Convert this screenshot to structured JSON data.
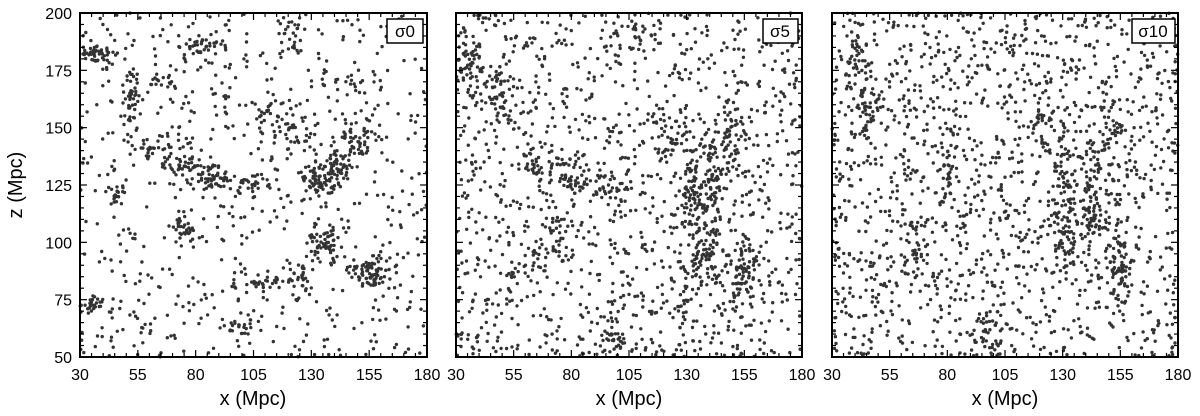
{
  "chart_data": [
    {
      "type": "scatter",
      "panel_label": "σ0",
      "xlabel": "",
      "ylabel": "z (Mpc)",
      "xlim": [
        30,
        180
      ],
      "ylim": [
        50,
        200
      ],
      "xticks": [
        30,
        55,
        80,
        105,
        130,
        155,
        180
      ],
      "yticks": [
        50,
        75,
        100,
        125,
        150,
        175,
        200
      ],
      "xtick_labels": [
        "30",
        "55",
        "80",
        "105",
        "130",
        "155",
        "180"
      ],
      "ytick_labels": [
        "50",
        "75",
        "100",
        "125",
        "150",
        "175",
        "200"
      ],
      "marker_color": "#333333",
      "clusters": [
        {
          "x": 36,
          "y": 182,
          "sx": 4,
          "sy": 2,
          "n": 45
        },
        {
          "x": 52,
          "y": 165,
          "sx": 2,
          "sy": 6,
          "n": 40
        },
        {
          "x": 83,
          "y": 186,
          "sx": 5,
          "sy": 3,
          "n": 40
        },
        {
          "x": 75,
          "y": 135,
          "sx": 6,
          "sy": 3,
          "n": 45
        },
        {
          "x": 88,
          "y": 128,
          "sx": 4,
          "sy": 4,
          "n": 45
        },
        {
          "x": 103,
          "y": 126,
          "sx": 6,
          "sy": 2,
          "n": 30
        },
        {
          "x": 132,
          "y": 128,
          "sx": 4,
          "sy": 4,
          "n": 55
        },
        {
          "x": 140,
          "y": 130,
          "sx": 3,
          "sy": 5,
          "n": 60
        },
        {
          "x": 150,
          "y": 145,
          "sx": 4,
          "sy": 5,
          "n": 55
        },
        {
          "x": 136,
          "y": 100,
          "sx": 4,
          "sy": 5,
          "n": 55
        },
        {
          "x": 155,
          "y": 87,
          "sx": 5,
          "sy": 3,
          "n": 70
        },
        {
          "x": 73,
          "y": 107,
          "sx": 3,
          "sy": 3,
          "n": 30
        },
        {
          "x": 35,
          "y": 73,
          "sx": 2,
          "sy": 1.5,
          "n": 25
        },
        {
          "x": 110,
          "y": 83,
          "sx": 6,
          "sy": 2,
          "n": 30
        },
        {
          "x": 126,
          "y": 85,
          "sx": 3,
          "sy": 5,
          "n": 30
        },
        {
          "x": 112,
          "y": 158,
          "sx": 8,
          "sy": 3,
          "n": 30
        },
        {
          "x": 120,
          "y": 150,
          "sx": 6,
          "sy": 3,
          "n": 30
        },
        {
          "x": 99,
          "y": 62,
          "sx": 4,
          "sy": 4,
          "n": 25
        },
        {
          "x": 45,
          "y": 120,
          "sx": 2,
          "sy": 3,
          "n": 20
        },
        {
          "x": 67,
          "y": 170,
          "sx": 4,
          "sy": 4,
          "n": 20
        },
        {
          "x": 61,
          "y": 140,
          "sx": 5,
          "sy": 4,
          "n": 25
        },
        {
          "x": 147,
          "y": 172,
          "sx": 8,
          "sy": 4,
          "n": 25
        },
        {
          "x": 122,
          "y": 190,
          "sx": 3,
          "sy": 5,
          "n": 25
        }
      ],
      "background_points": 650
    },
    {
      "type": "scatter",
      "panel_label": "σ5",
      "xlabel": "x (Mpc)",
      "ylabel": "",
      "xlim": [
        30,
        180
      ],
      "ylim": [
        50,
        200
      ],
      "xticks": [
        30,
        55,
        80,
        105,
        130,
        155,
        180
      ],
      "xtick_labels": [
        "30",
        "55",
        "80",
        "105",
        "130",
        "155",
        "180"
      ],
      "marker_color": "#333333",
      "clusters": [
        {
          "x": 36,
          "y": 180,
          "sx": 3,
          "sy": 6,
          "n": 40
        },
        {
          "x": 48,
          "y": 163,
          "sx": 2.5,
          "sy": 8,
          "n": 45
        },
        {
          "x": 78,
          "y": 131,
          "sx": 4,
          "sy": 7,
          "n": 45
        },
        {
          "x": 96,
          "y": 125,
          "sx": 5,
          "sy": 4,
          "n": 35
        },
        {
          "x": 63,
          "y": 133,
          "sx": 3,
          "sy": 8,
          "n": 30
        },
        {
          "x": 133,
          "y": 122,
          "sx": 3,
          "sy": 13,
          "n": 90
        },
        {
          "x": 141,
          "y": 125,
          "sx": 3,
          "sy": 12,
          "n": 80
        },
        {
          "x": 137,
          "y": 97,
          "sx": 4,
          "sy": 10,
          "n": 70
        },
        {
          "x": 155,
          "y": 87,
          "sx": 4,
          "sy": 7,
          "n": 75
        },
        {
          "x": 150,
          "y": 145,
          "sx": 4,
          "sy": 8,
          "n": 55
        },
        {
          "x": 122,
          "y": 147,
          "sx": 4,
          "sy": 6,
          "n": 30
        },
        {
          "x": 75,
          "y": 103,
          "sx": 4,
          "sy": 8,
          "n": 30
        },
        {
          "x": 98,
          "y": 60,
          "sx": 3,
          "sy": 6,
          "n": 30
        },
        {
          "x": 128,
          "y": 80,
          "sx": 3,
          "sy": 8,
          "n": 30
        },
        {
          "x": 105,
          "y": 190,
          "sx": 5,
          "sy": 6,
          "n": 20
        },
        {
          "x": 60,
          "y": 85,
          "sx": 5,
          "sy": 8,
          "n": 25
        }
      ],
      "background_points": 1200
    },
    {
      "type": "scatter",
      "panel_label": "σ10",
      "xlabel": "x (Mpc)",
      "ylabel": "",
      "xlim": [
        30,
        180
      ],
      "ylim": [
        50,
        200
      ],
      "xticks": [
        30,
        55,
        80,
        105,
        130,
        155,
        180
      ],
      "xtick_labels": [
        "30",
        "55",
        "80",
        "105",
        "130",
        "155",
        "180"
      ],
      "marker_color": "#333333",
      "clusters": [
        {
          "x": 45,
          "y": 162,
          "sx": 3,
          "sy": 8,
          "n": 45
        },
        {
          "x": 38,
          "y": 180,
          "sx": 3,
          "sy": 7,
          "n": 30
        },
        {
          "x": 80,
          "y": 133,
          "sx": 2.5,
          "sy": 8,
          "n": 35
        },
        {
          "x": 131,
          "y": 115,
          "sx": 3,
          "sy": 16,
          "n": 95
        },
        {
          "x": 142,
          "y": 120,
          "sx": 3,
          "sy": 15,
          "n": 85
        },
        {
          "x": 155,
          "y": 90,
          "sx": 3,
          "sy": 10,
          "n": 70
        },
        {
          "x": 152,
          "y": 145,
          "sx": 4,
          "sy": 10,
          "n": 40
        },
        {
          "x": 97,
          "y": 62,
          "sx": 3,
          "sy": 8,
          "n": 25
        },
        {
          "x": 65,
          "y": 100,
          "sx": 4,
          "sy": 12,
          "n": 30
        },
        {
          "x": 120,
          "y": 150,
          "sx": 4,
          "sy": 8,
          "n": 25
        }
      ],
      "background_points": 1450
    }
  ]
}
